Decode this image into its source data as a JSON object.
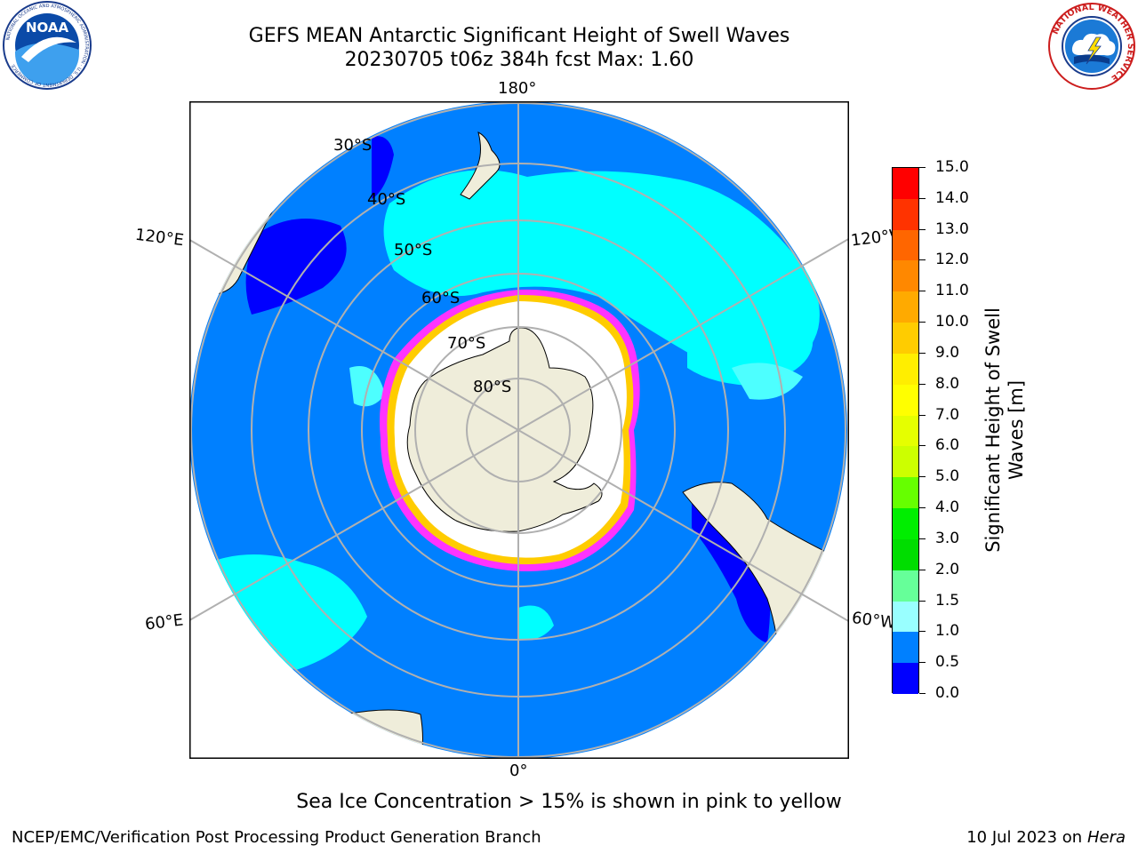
{
  "header": {
    "title_line1": "GEFS MEAN Antarctic Significant Height of Swell Waves",
    "title_line2": "20230705 t06z 384h fcst   Max: 1.60"
  },
  "logos": {
    "left": {
      "name": "noaa-logo",
      "text": "NOAA",
      "ring_text": "NATIONAL OCEANIC AND ATMOSPHERIC ADMINISTRATION · U.S. DEPARTMENT OF COMMERCE"
    },
    "right": {
      "name": "nws-logo",
      "ring_text": "NATIONAL WEATHER SERVICE"
    }
  },
  "map": {
    "projection": "south-polar-stereographic",
    "lon_labels": {
      "top": "180°",
      "left_upper": "120°E",
      "right_upper": "120°W",
      "left_lower": "60°E",
      "right_lower": "60°W",
      "bottom": "0°"
    },
    "lat_labels": [
      "30°S",
      "40°S",
      "50°S",
      "60°S",
      "70°S",
      "80°S"
    ],
    "colors": {
      "ocean_low": "#0080ff",
      "ocean_min": "#0000ff",
      "ocean_mid": "#00ffff",
      "ocean_light": "#4dffff",
      "land": "#efedda",
      "sea_ice": "#ffffff",
      "ice_edge_pink": "#ff33ff",
      "ice_edge_yellow": "#ffcc00",
      "grid": "#b0b0b0"
    }
  },
  "colorbar": {
    "label": "Significant Height of Swell Waves [m]",
    "label_line1": "Significant Height of Swell",
    "label_line2": "Waves [m]",
    "ticks": [
      "15.0",
      "14.0",
      "13.0",
      "12.0",
      "11.0",
      "10.0",
      "9.0",
      "8.0",
      "7.0",
      "6.0",
      "5.0",
      "4.0",
      "3.0",
      "2.0",
      "1.5",
      "1.0",
      "0.5",
      "0.0"
    ],
    "colors": [
      "#ff0000",
      "#ff3300",
      "#ff6600",
      "#ff8800",
      "#ffaa00",
      "#ffcc00",
      "#ffee00",
      "#ffff00",
      "#e5ff00",
      "#ccff00",
      "#66ff00",
      "#00ee00",
      "#00dd00",
      "#66ff99",
      "#99ffff",
      "#55ffff",
      "#00ffff",
      "#0080ff",
      "#0000ff"
    ]
  },
  "caption": "Sea Ice Concentration > 15% is shown in pink to yellow",
  "footer": {
    "left": "NCEP/EMC/Verification Post Processing Product Generation Branch",
    "right_prefix": "10 Jul 2023 on ",
    "right_host": "Hera"
  }
}
